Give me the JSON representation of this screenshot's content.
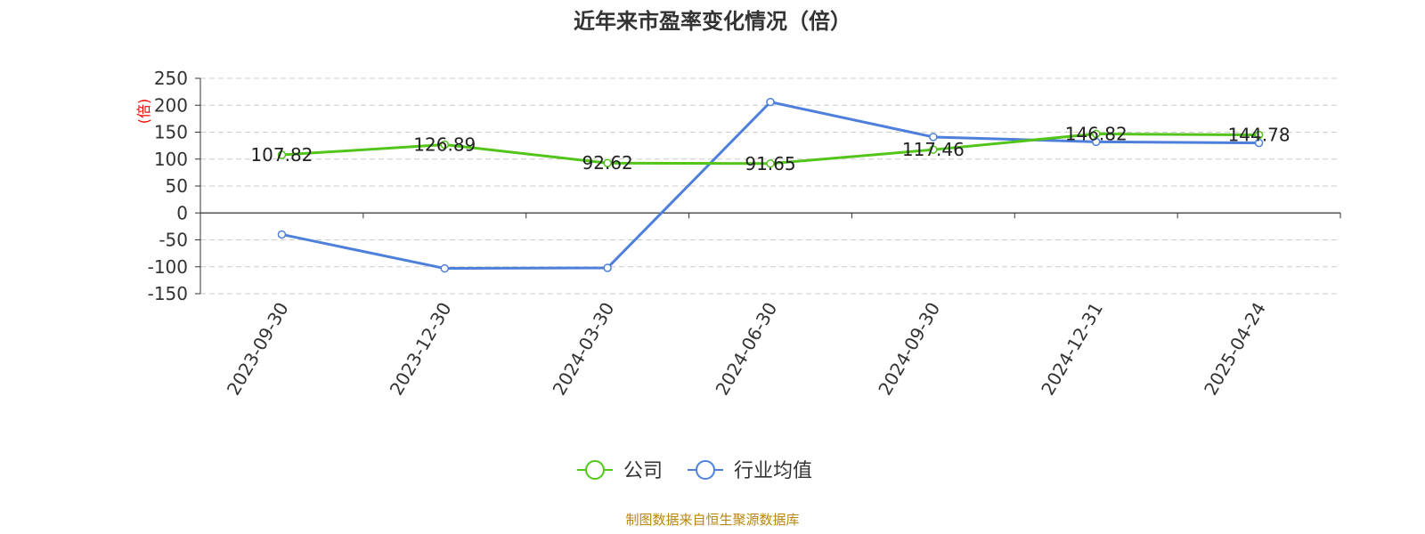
{
  "chart_data": {
    "type": "line",
    "title": "近年来市盈率变化情况（倍）",
    "ylabel": "(倍)",
    "xlabel": "",
    "categories": [
      "2023-09-30",
      "2023-12-30",
      "2024-03-30",
      "2024-06-30",
      "2024-09-30",
      "2024-12-31",
      "2025-04-24"
    ],
    "series": [
      {
        "name": "公司",
        "color": "#52c41a",
        "values": [
          107.82,
          126.89,
          92.62,
          91.65,
          117.46,
          146.82,
          144.78
        ]
      },
      {
        "name": "行业均值",
        "color": "#4e80db",
        "values": [
          -40,
          -103,
          -102,
          206,
          141,
          132,
          130
        ]
      }
    ],
    "data_labels_series": "公司",
    "ylim": [
      -150,
      250
    ],
    "yticks": [
      250,
      200,
      150,
      100,
      50,
      0,
      -50,
      -100,
      -150
    ],
    "grid": true,
    "legend_position": "bottom-center"
  },
  "source_note": "制图数据来自恒生聚源数据库",
  "colors": {
    "title": "#333333",
    "axis": "#333333",
    "grid": "#cccccc",
    "ylabel": "#ff0000",
    "source": "#b8860b"
  }
}
